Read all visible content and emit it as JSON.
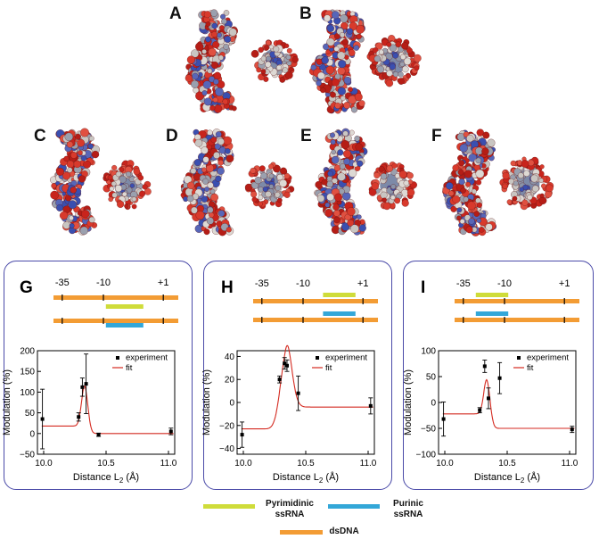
{
  "colors": {
    "dsDNA": "#f39c34",
    "pyrimidinic": "#cfdc3a",
    "purinic": "#33a7d8",
    "fit": "#d42a20",
    "frame": "#4a4aa8"
  },
  "structure_panels": [
    "A",
    "B",
    "C",
    "D",
    "E",
    "F"
  ],
  "panels": [
    {
      "label": "G",
      "marks": [
        "-35",
        "-10",
        "+1"
      ],
      "chart_data": {
        "type": "scatter",
        "xlabel": "Distance L",
        "xlabel_sub": "2",
        "xlabel_unit": " (Å)",
        "ylabel": "Modulation (%)",
        "xlim": [
          9.95,
          11.05
        ],
        "ylim": [
          -50,
          200
        ],
        "yticks": [
          -50,
          0,
          50,
          100,
          150,
          200
        ],
        "ytick_labels": [
          "−50",
          "0",
          "50",
          "100",
          "150",
          "200"
        ],
        "xticks": [
          10.0,
          10.5,
          11.0
        ],
        "xtick_labels": [
          "10.0",
          "10.5",
          "11.0"
        ],
        "series": [
          {
            "name": "experiment",
            "points": [
              {
                "x": 9.99,
                "y": 35,
                "err": 72
              },
              {
                "x": 10.28,
                "y": 40,
                "err": 10
              },
              {
                "x": 10.31,
                "y": 112,
                "err": 22
              },
              {
                "x": 10.34,
                "y": 120,
                "err": 72
              },
              {
                "x": 10.44,
                "y": -3,
                "err": 4
              },
              {
                "x": 11.02,
                "y": 5,
                "err": 8
              }
            ]
          },
          {
            "name": "fit",
            "x0": 10.33,
            "sigma": 0.025,
            "amp": 105,
            "base_left": 18,
            "base_right": 0
          }
        ],
        "legend": "top-right"
      }
    },
    {
      "label": "H",
      "marks": [
        "-35",
        "-10",
        "+1"
      ],
      "chart_data": {
        "type": "scatter",
        "xlabel": "Distance L",
        "xlabel_sub": "2",
        "xlabel_unit": " (Å)",
        "ylabel": "Modulation (%)",
        "xlim": [
          9.95,
          11.05
        ],
        "ylim": [
          -45,
          45
        ],
        "yticks": [
          -40,
          -20,
          0,
          20,
          40
        ],
        "ytick_labels": [
          "−40",
          "−20",
          "0",
          "20",
          "40"
        ],
        "xticks": [
          10.0,
          10.5,
          11.0
        ],
        "xtick_labels": [
          "10.0",
          "10.5",
          "11.0"
        ],
        "series": [
          {
            "name": "experiment",
            "points": [
              {
                "x": 9.99,
                "y": -28,
                "err": 11
              },
              {
                "x": 10.29,
                "y": 20,
                "err": 3
              },
              {
                "x": 10.33,
                "y": 34,
                "err": 5
              },
              {
                "x": 10.35,
                "y": 32,
                "err": 5
              },
              {
                "x": 10.44,
                "y": 8,
                "err": 15
              },
              {
                "x": 11.02,
                "y": -3,
                "err": 7
              }
            ]
          },
          {
            "name": "fit",
            "x0": 10.34,
            "sigma": 0.045,
            "amp": 60,
            "base_left": -23,
            "base_right": -4
          }
        ],
        "legend": "top-right"
      }
    },
    {
      "label": "I",
      "marks": [
        "-35",
        "-10",
        "+1"
      ],
      "chart_data": {
        "type": "scatter",
        "xlabel": "Distance L",
        "xlabel_sub": "2",
        "xlabel_unit": " (Å)",
        "ylabel": "Modulation (%)",
        "xlim": [
          9.95,
          11.05
        ],
        "ylim": [
          -100,
          100
        ],
        "yticks": [
          -100,
          -50,
          0,
          50,
          100
        ],
        "ytick_labels": [
          "−100",
          "−50",
          "0",
          "50",
          "100"
        ],
        "xticks": [
          10.0,
          10.5,
          11.0
        ],
        "xtick_labels": [
          "10.0",
          "10.5",
          "11.0"
        ],
        "series": [
          {
            "name": "experiment",
            "points": [
              {
                "x": 9.99,
                "y": -32,
                "err": 33
              },
              {
                "x": 10.28,
                "y": -15,
                "err": 5
              },
              {
                "x": 10.32,
                "y": 70,
                "err": 12
              },
              {
                "x": 10.35,
                "y": 8,
                "err": 20
              },
              {
                "x": 10.44,
                "y": 47,
                "err": 30
              },
              {
                "x": 11.02,
                "y": -52,
                "err": 6
              }
            ]
          },
          {
            "name": "fit",
            "x0": 10.34,
            "sigma": 0.025,
            "amp": 78,
            "base_left": -22,
            "base_right": -50
          }
        ],
        "legend": "top-right"
      }
    }
  ],
  "legend": {
    "pyrimidinic": "Pyrimidinic\nssRNA",
    "purinic": "Purinic\nssRNA",
    "dsDNA": "dsDNA"
  }
}
